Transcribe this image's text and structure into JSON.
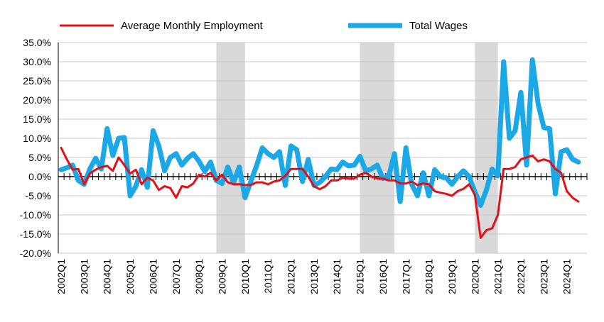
{
  "chart_data": {
    "type": "line",
    "title": "",
    "xlabel": "",
    "ylabel": "",
    "ylim": [
      -20,
      35
    ],
    "y_ticks": [
      "35.0%",
      "30.0%",
      "25.0%",
      "20.0%",
      "15.0%",
      "10.0%",
      "5.0%",
      "0.0%",
      "-5.0%",
      "-10.0%",
      "-15.0%",
      "-20.0%"
    ],
    "y_tick_values": [
      35,
      30,
      25,
      20,
      15,
      10,
      5,
      0,
      -5,
      -10,
      -15,
      -20
    ],
    "x_ticks": [
      "2002Q1",
      "2003Q1",
      "2004Q1",
      "2005Q1",
      "2006Q1",
      "2007Q1",
      "2008Q1",
      "2009Q1",
      "2010Q1",
      "2011Q1",
      "2012Q1",
      "2013Q1",
      "2014Q1",
      "2015Q1",
      "2016Q1",
      "2017Q1",
      "2018Q1",
      "2019Q1",
      "2020Q1",
      "2021Q1",
      "2022Q1",
      "2023Q1",
      "2024Q1"
    ],
    "first_quarter": "2002Q1",
    "last_quarter": "2024Q4",
    "recession_shading": [
      {
        "start": "2008Q4",
        "end": "2010Q1"
      },
      {
        "start": "2015Q1",
        "end": "2016Q3"
      },
      {
        "start": "2020Q1",
        "end": "2021Q1"
      }
    ],
    "grid": "horizontal",
    "legend_position": "top",
    "series": [
      {
        "name": "Average Monthly Employment",
        "color": "#e3101a",
        "values": [
          7.5,
          4.5,
          1.8,
          2.0,
          -2.0,
          0.8,
          1.8,
          2.5,
          2.8,
          1.5,
          5.0,
          3.0,
          0.8,
          1.8,
          -2.0,
          -0.3,
          -1.0,
          -3.5,
          -2.5,
          -3.0,
          -5.5,
          -2.5,
          -2.8,
          -1.8,
          0.5,
          0.0,
          1.0,
          -1.0,
          0.5,
          -1.5,
          -2.0,
          -2.0,
          -2.2,
          -2.2,
          -1.5,
          -1.5,
          -2.0,
          -1.3,
          -1.0,
          0.2,
          2.0,
          2.0,
          2.0,
          0.0,
          -2.5,
          -3.3,
          -2.5,
          -1.0,
          -1.0,
          -0.3,
          -0.5,
          -0.5,
          0.5,
          1.0,
          0.0,
          -0.5,
          -0.5,
          -1.0,
          -1.0,
          -1.8,
          -1.8,
          -1.3,
          -2.2,
          -1.8,
          -2.0,
          -3.8,
          -4.2,
          -4.5,
          -5.0,
          -3.8,
          -3.2,
          -2.0,
          -4.8,
          -16.0,
          -14.0,
          -13.5,
          -10.0,
          2.0,
          2.0,
          2.5,
          4.5,
          5.0,
          5.5,
          4.0,
          4.5,
          4.0,
          2.0,
          1.0,
          -3.8,
          -5.5,
          -6.5
        ]
      },
      {
        "name": "Total Wages",
        "color": "#1ba8e6",
        "values": [
          1.8,
          2.3,
          3.0,
          -1.0,
          -2.0,
          2.0,
          4.8,
          2.0,
          12.5,
          5.5,
          10.0,
          10.2,
          -5.0,
          -2.5,
          1.8,
          -2.8,
          12.0,
          8.0,
          1.5,
          5.0,
          6.0,
          3.0,
          4.8,
          6.0,
          4.0,
          1.3,
          3.8,
          -1.0,
          -1.8,
          2.5,
          -1.5,
          2.5,
          -5.5,
          -1.3,
          2.8,
          7.5,
          6.0,
          5.0,
          6.5,
          -2.3,
          8.0,
          7.0,
          -1.3,
          4.5,
          -2.3,
          -1.5,
          0.0,
          2.0,
          1.8,
          3.8,
          2.8,
          3.0,
          5.3,
          1.5,
          2.0,
          3.0,
          -0.5,
          0.0,
          6.0,
          -6.5,
          7.5,
          -2.0,
          -5.0,
          1.0,
          -5.0,
          1.8,
          0.0,
          -0.3,
          -2.0,
          0.0,
          1.5,
          0.0,
          -4.0,
          -7.5,
          -3.5,
          2.0,
          0.2,
          30.0,
          10.0,
          12.0,
          22.0,
          3.0,
          30.5,
          19.0,
          12.8,
          12.5,
          -4.5,
          6.5,
          7.0,
          4.5,
          3.8
        ]
      }
    ]
  }
}
